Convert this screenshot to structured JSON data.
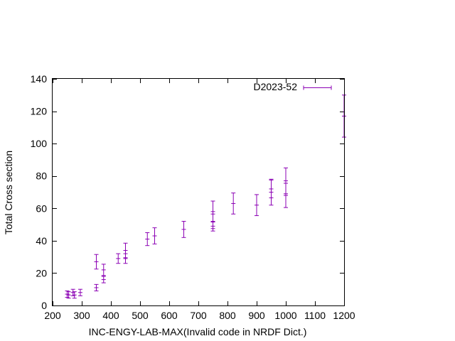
{
  "chart_data": {
    "type": "scatter",
    "xlabel": "INC-ENGY-LAB-MAX(Invalid code in NRDF Dict.)",
    "ylabel": "Total Cross section",
    "xlim": [
      200,
      1200
    ],
    "ylim": [
      0,
      140
    ],
    "xticks": [
      200,
      300,
      400,
      500,
      600,
      700,
      800,
      900,
      1000,
      1100,
      1200
    ],
    "yticks": [
      0,
      20,
      40,
      60,
      80,
      100,
      120,
      140
    ],
    "grid": false,
    "legend_position": "top-right",
    "series": [
      {
        "name": "D2023-52",
        "color": "#8b00b4",
        "points": [
          {
            "x": 250,
            "y": 7,
            "err": 2
          },
          {
            "x": 255,
            "y": 6.5,
            "err": 2
          },
          {
            "x": 270,
            "y": 8,
            "err": 2
          },
          {
            "x": 275,
            "y": 6.5,
            "err": 2
          },
          {
            "x": 295,
            "y": 8,
            "err": 2
          },
          {
            "x": 350,
            "y": 27,
            "err": 4.5
          },
          {
            "x": 350,
            "y": 11,
            "err": 2
          },
          {
            "x": 375,
            "y": 22,
            "err": 3.5
          },
          {
            "x": 375,
            "y": 16,
            "err": 2
          },
          {
            "x": 425,
            "y": 29,
            "err": 3
          },
          {
            "x": 450,
            "y": 34,
            "err": 4.5
          },
          {
            "x": 450,
            "y": 29,
            "err": 3
          },
          {
            "x": 525,
            "y": 41,
            "err": 4
          },
          {
            "x": 550,
            "y": 43,
            "err": 5
          },
          {
            "x": 650,
            "y": 47,
            "err": 5
          },
          {
            "x": 750,
            "y": 58,
            "err": 6.5
          },
          {
            "x": 750,
            "y": 52,
            "err": 4.5
          },
          {
            "x": 750,
            "y": 49,
            "err": 3
          },
          {
            "x": 820,
            "y": 63,
            "err": 6.5
          },
          {
            "x": 900,
            "y": 62,
            "err": 6.5
          },
          {
            "x": 950,
            "y": 70,
            "err": 8
          },
          {
            "x": 950,
            "y": 72,
            "err": 5.5
          },
          {
            "x": 1000,
            "y": 77,
            "err": 8
          },
          {
            "x": 1000,
            "y": 68,
            "err": 7.5
          },
          {
            "x": 1200,
            "y": 117,
            "err": 13
          }
        ]
      }
    ]
  }
}
